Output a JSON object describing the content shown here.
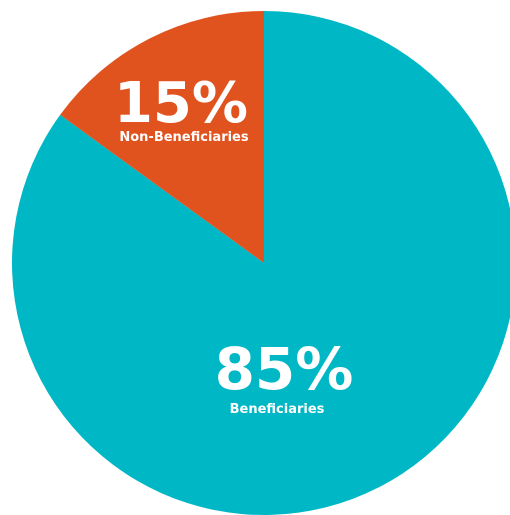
{
  "chart_data": {
    "type": "pie",
    "slices": [
      {
        "label": "Beneficiaries",
        "value": 85,
        "display": "85%",
        "color": "#00b7c6"
      },
      {
        "label": "Non-Beneficiaries",
        "value": 15,
        "display": "15%",
        "color": "#e0531f"
      }
    ],
    "start_angle_deg": 0,
    "direction": "clockwise"
  }
}
